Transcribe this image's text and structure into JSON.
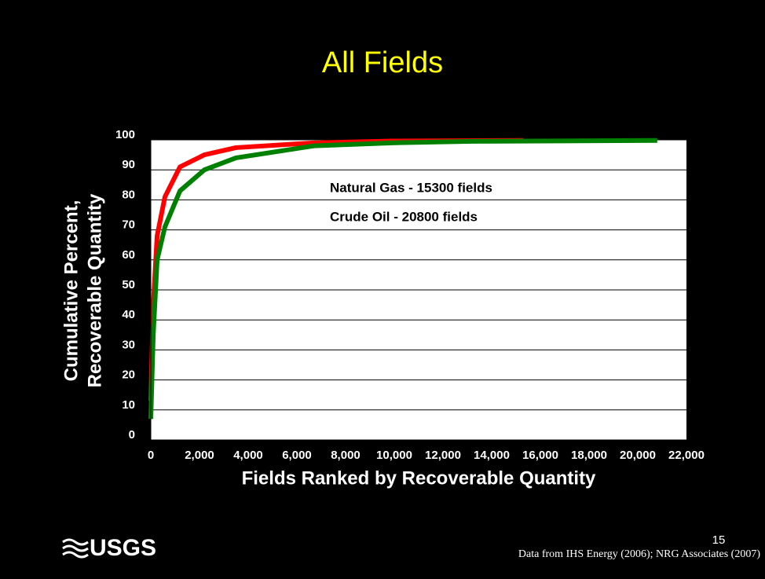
{
  "chart_data": {
    "type": "line",
    "title": "All Fields",
    "xlabel": "Fields Ranked by Recoverable Quantity",
    "ylabel": [
      "Cumulative Percent,",
      "Recoverable Quantity"
    ],
    "annotations": [
      "Natural Gas - 15300 fields",
      "Crude Oil - 20800 fields"
    ],
    "series": [
      {
        "name": "Natural Gas",
        "color": "#ff0000",
        "x": [
          0,
          100,
          260,
          580,
          1200,
          2200,
          3500,
          6700,
          9900,
          15300
        ],
        "values": [
          13,
          45,
          68,
          81,
          91,
          95,
          97.4,
          99,
          99.6,
          99.8
        ]
      },
      {
        "name": "Crude Oil",
        "color": "#008000",
        "x": [
          0,
          100,
          260,
          580,
          1200,
          2200,
          3500,
          6700,
          9900,
          13200,
          20800
        ],
        "values": [
          7,
          35,
          60,
          71,
          83,
          90,
          94,
          98,
          99,
          99.5,
          99.8
        ]
      }
    ],
    "xlim": [
      0,
      22000
    ],
    "xticks": [
      0,
      {
        "value": 2000,
        "label": "2,000"
      },
      {
        "value": 4000,
        "label": "4,000"
      },
      {
        "value": 6000,
        "label": "6,000"
      },
      {
        "value": 8000,
        "label": "8,000"
      },
      {
        "value": 10000,
        "label": "10,000"
      },
      {
        "value": 12000,
        "label": "12,000"
      },
      {
        "value": 14000,
        "label": "14,000"
      },
      {
        "value": 16000,
        "label": "16,000"
      },
      {
        "value": 18000,
        "label": "18,000"
      },
      {
        "value": 20000,
        "label": "20,000"
      },
      {
        "value": 22000,
        "label": "22,000"
      }
    ],
    "ylim": [
      0,
      100
    ],
    "yticks": [
      0,
      10,
      20,
      30,
      40,
      50,
      60,
      70,
      80,
      90,
      100
    ],
    "grid": true
  },
  "footer": {
    "logo": "USGS",
    "page_number": "15",
    "source": "Data from IHS Energy (2006); NRG Associates (2007)"
  }
}
